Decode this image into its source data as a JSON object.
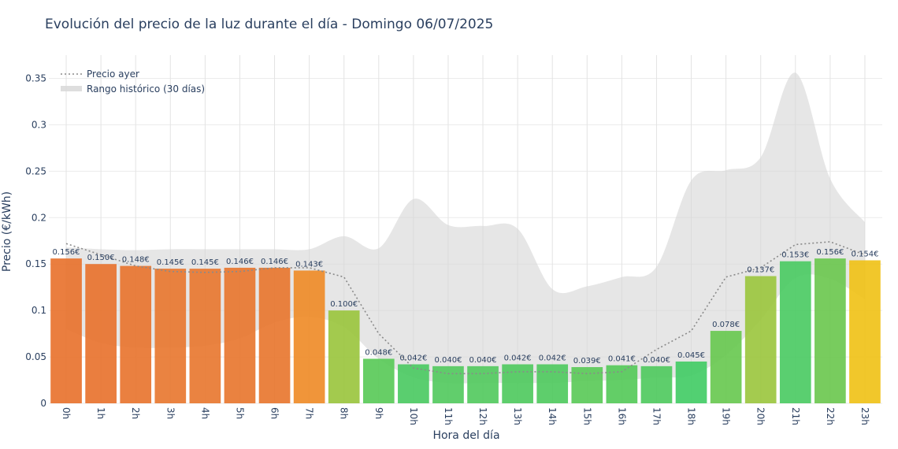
{
  "chart_data": {
    "type": "bar",
    "title": "Evolución del precio de la luz durante el día - Domingo 06/07/2025",
    "xlabel": "Hora del día",
    "ylabel": "Precio (€/kWh)",
    "ylim": [
      0,
      0.375
    ],
    "yticks": [
      0,
      0.05,
      0.1,
      0.15,
      0.2,
      0.25,
      0.3,
      0.35
    ],
    "ytick_labels": [
      "0",
      "0.05",
      "0.1",
      "0.15",
      "0.2",
      "0.25",
      "0.3",
      "0.35"
    ],
    "categories": [
      "0h",
      "1h",
      "2h",
      "3h",
      "4h",
      "5h",
      "6h",
      "7h",
      "8h",
      "9h",
      "10h",
      "11h",
      "12h",
      "13h",
      "14h",
      "15h",
      "16h",
      "17h",
      "18h",
      "19h",
      "20h",
      "21h",
      "22h",
      "23h"
    ],
    "values": [
      0.156,
      0.15,
      0.148,
      0.145,
      0.145,
      0.146,
      0.146,
      0.143,
      0.1,
      0.048,
      0.042,
      0.04,
      0.04,
      0.042,
      0.042,
      0.039,
      0.041,
      0.04,
      0.045,
      0.078,
      0.137,
      0.153,
      0.156,
      0.154
    ],
    "value_labels": [
      "0.156€",
      "0.150€",
      "0.148€",
      "0.145€",
      "0.145€",
      "0.146€",
      "0.146€",
      "0.143€",
      "0.100€",
      "0.048€",
      "0.042€",
      "0.040€",
      "0.040€",
      "0.042€",
      "0.042€",
      "0.039€",
      "0.041€",
      "0.040€",
      "0.045€",
      "0.078€",
      "0.137€",
      "0.153€",
      "0.156€",
      "0.154€"
    ],
    "bar_colors": [
      "#e8702a",
      "#e8702a",
      "#e8722b",
      "#e8752c",
      "#e8752c",
      "#e8742b",
      "#e8742b",
      "#ee8a25",
      "#99c43b",
      "#57c955",
      "#48c95f",
      "#50c95c",
      "#50c95c",
      "#4cc95c",
      "#4cc95c",
      "#58c955",
      "#52c957",
      "#4cc95c",
      "#3fcb63",
      "#66c84e",
      "#9ac53c",
      "#48ca60",
      "#69c74c",
      "#f0c114"
    ],
    "series": [
      {
        "name": "Precio ayer",
        "style": "dotted",
        "color": "#8a8a8a",
        "values": [
          0.172,
          0.16,
          0.148,
          0.142,
          0.141,
          0.142,
          0.146,
          0.146,
          0.136,
          0.075,
          0.038,
          0.032,
          0.032,
          0.034,
          0.034,
          0.032,
          0.034,
          0.058,
          0.078,
          0.136,
          0.146,
          0.171,
          0.174,
          0.16
        ]
      },
      {
        "name": "Rango histórico (30 días)",
        "style": "band",
        "color": "#d6d6d6",
        "upper": [
          0.168,
          0.166,
          0.165,
          0.166,
          0.166,
          0.166,
          0.166,
          0.166,
          0.18,
          0.167,
          0.22,
          0.192,
          0.191,
          0.188,
          0.123,
          0.126,
          0.136,
          0.147,
          0.24,
          0.251,
          0.265,
          0.356,
          0.242,
          0.195
        ],
        "lower": [
          0.08,
          0.065,
          0.06,
          0.06,
          0.062,
          0.07,
          0.087,
          0.093,
          0.082,
          0.048,
          0.028,
          0.022,
          0.022,
          0.022,
          0.022,
          0.024,
          0.025,
          0.028,
          0.03,
          0.052,
          0.09,
          0.135,
          0.134,
          0.112
        ]
      }
    ],
    "legend_position": "top-left",
    "grid": true
  }
}
